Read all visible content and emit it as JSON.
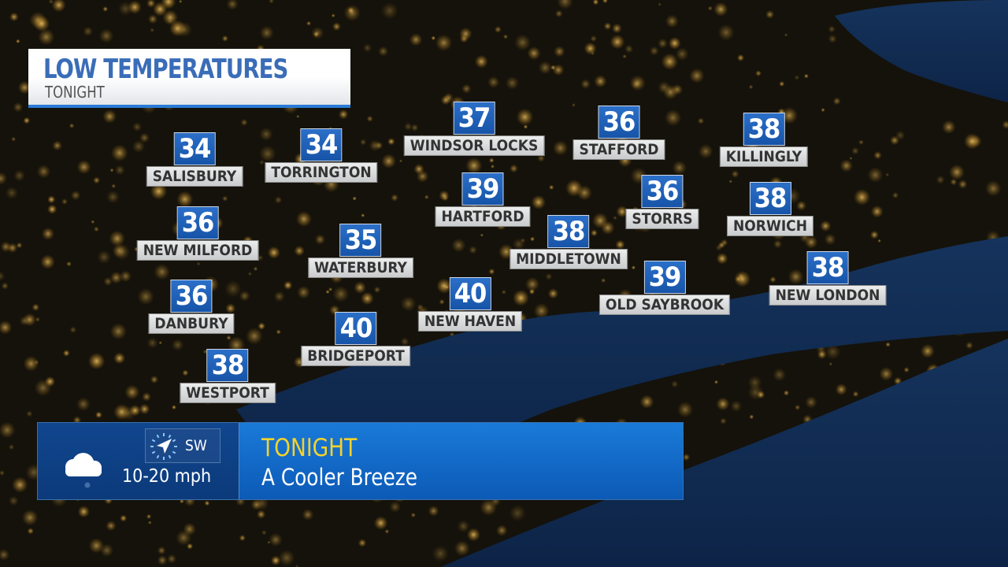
{
  "header": {
    "title": "LOW TEMPERATURES",
    "subtitle": "TONIGHT"
  },
  "colors": {
    "temp_box": "#1f62bb",
    "label_box": "#d9dadb",
    "accent": "#2a7bd6",
    "headline": "#f6d22a"
  },
  "cities": [
    {
      "name": "SALISBURY",
      "temp": "34"
    },
    {
      "name": "TORRINGTON",
      "temp": "34"
    },
    {
      "name": "WINDSOR LOCKS",
      "temp": "37"
    },
    {
      "name": "STAFFORD",
      "temp": "36"
    },
    {
      "name": "KILLINGLY",
      "temp": "38"
    },
    {
      "name": "HARTFORD",
      "temp": "39"
    },
    {
      "name": "STORRS",
      "temp": "36"
    },
    {
      "name": "NORWICH",
      "temp": "38"
    },
    {
      "name": "NEW MILFORD",
      "temp": "36"
    },
    {
      "name": "WATERBURY",
      "temp": "35"
    },
    {
      "name": "MIDDLETOWN",
      "temp": "38"
    },
    {
      "name": "OLD SAYBROOK",
      "temp": "39"
    },
    {
      "name": "NEW LONDON",
      "temp": "38"
    },
    {
      "name": "DANBURY",
      "temp": "36"
    },
    {
      "name": "NEW HAVEN",
      "temp": "40"
    },
    {
      "name": "BRIDGEPORT",
      "temp": "40"
    },
    {
      "name": "WESTPORT",
      "temp": "38"
    }
  ],
  "forecast": {
    "icon": "partly-cloudy-night-icon",
    "wind_direction": "SW",
    "wind_speed": "10-20 mph",
    "period": "TONIGHT",
    "description": "A Cooler Breeze"
  }
}
